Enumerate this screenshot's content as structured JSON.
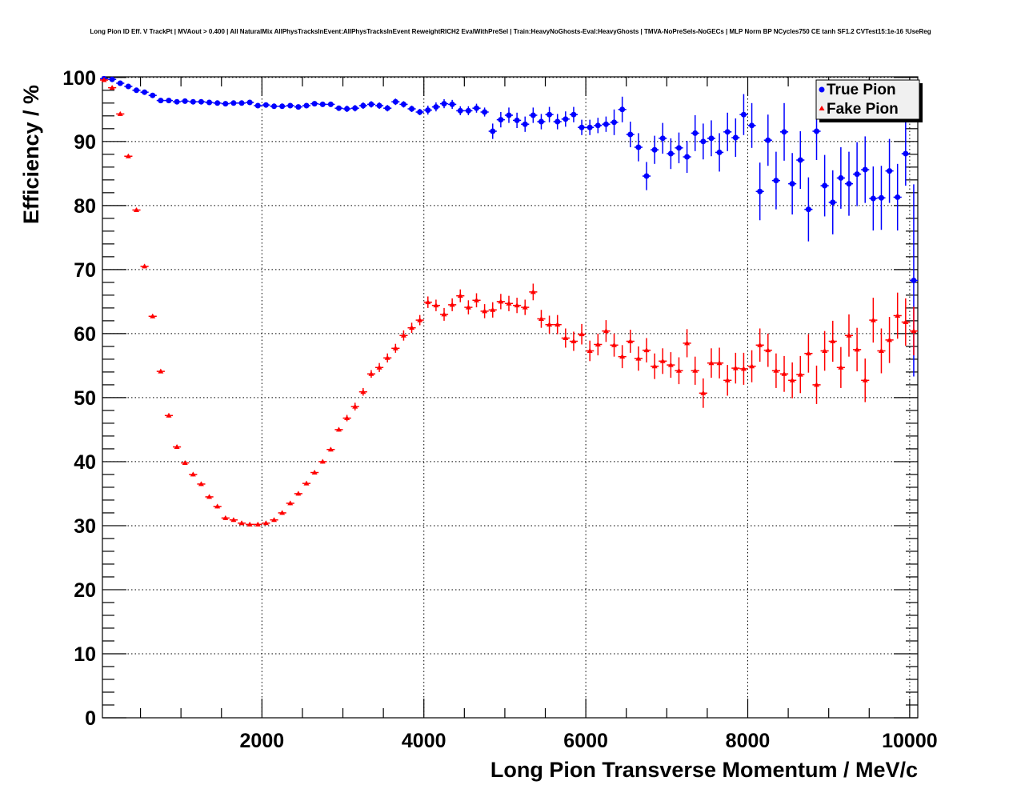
{
  "chart_data": {
    "type": "scatter",
    "title": "Long Pion ID Eff. V TrackPt | MVAout > 0.400 | All NaturalMix AllPhysTracksInEvent:AllPhysTracksInEvent ReweightRICH2 EvalWithPreSel | Train:HeavyNoGhosts-Eval:HeavyGhosts | TMVA-NoPreSels-NoGECs | MLP Norm BP NCycles750 CE tanh SF1.2 CVTest15:1e-16 !UseReg",
    "xlabel": "Long Pion Transverse Momentum / MeV/c",
    "ylabel": "Efficiency / %",
    "xlim": [
      30,
      10100
    ],
    "ylim": [
      0,
      100.1
    ],
    "xticks": [
      "2000",
      "4000",
      "6000",
      "8000",
      "10000"
    ],
    "xtick_values": [
      2000,
      4000,
      6000,
      8000,
      10000
    ],
    "yticks": [
      "0",
      "10",
      "20",
      "30",
      "40",
      "50",
      "60",
      "70",
      "80",
      "90",
      "100"
    ],
    "ytick_values": [
      0,
      10,
      20,
      30,
      40,
      50,
      60,
      70,
      80,
      90,
      100
    ],
    "grid": true,
    "legend_position": "top-right",
    "x_start": 50,
    "x_step": 100,
    "series": [
      {
        "name": "True Pion",
        "color": "#0000ff",
        "marker": "circle",
        "values": [
          99.8,
          99.7,
          99.1,
          98.6,
          98.0,
          97.7,
          97.2,
          96.4,
          96.4,
          96.2,
          96.3,
          96.2,
          96.2,
          96.1,
          96.0,
          95.9,
          96.0,
          96.0,
          96.1,
          95.6,
          95.7,
          95.5,
          95.5,
          95.6,
          95.4,
          95.6,
          95.9,
          95.8,
          95.8,
          95.2,
          95.1,
          95.2,
          95.6,
          95.8,
          95.6,
          95.2,
          96.2,
          95.8,
          95.1,
          94.6,
          94.9,
          95.4,
          95.9,
          95.8,
          94.8,
          94.8,
          95.2,
          94.6,
          91.6,
          93.4,
          94.1,
          93.3,
          92.7,
          94.1,
          93.1,
          94.2,
          93.1,
          93.5,
          94.2,
          92.2,
          92.2,
          92.5,
          92.7,
          93.0,
          95.0,
          91.1,
          89.1,
          84.6,
          88.7,
          90.5,
          88.1,
          89.0,
          87.6,
          91.3,
          90.0,
          90.5,
          88.3,
          91.5,
          90.6,
          94.2,
          92.5,
          82.2,
          90.2,
          83.9,
          91.5,
          83.4,
          87.1,
          79.4,
          91.6,
          83.1,
          80.5,
          84.3,
          83.4,
          84.9,
          85.6,
          81.1,
          81.2,
          85.4,
          81.3,
          88.1,
          68.3
        ],
        "errors": [
          0.2,
          0.2,
          0.2,
          0.2,
          0.2,
          0.2,
          0.2,
          0.2,
          0.2,
          0.2,
          0.3,
          0.3,
          0.3,
          0.3,
          0.3,
          0.3,
          0.3,
          0.3,
          0.3,
          0.3,
          0.3,
          0.3,
          0.3,
          0.3,
          0.3,
          0.3,
          0.3,
          0.3,
          0.3,
          0.3,
          0.5,
          0.5,
          0.5,
          0.5,
          0.5,
          0.5,
          0.5,
          0.5,
          0.5,
          0.5,
          0.7,
          0.7,
          0.7,
          0.7,
          0.7,
          0.7,
          0.7,
          0.7,
          1.2,
          1.2,
          1.2,
          1.2,
          1.2,
          1.2,
          1.2,
          1.2,
          1.2,
          1.2,
          1.2,
          1.2,
          1.2,
          1.2,
          1.2,
          2.0,
          2.0,
          2.0,
          2.2,
          2.2,
          2.2,
          2.4,
          2.4,
          2.4,
          2.5,
          2.8,
          2.8,
          2.8,
          3.0,
          3.0,
          3.0,
          3.2,
          3.5,
          4.5,
          4.0,
          4.5,
          4.5,
          4.8,
          4.5,
          5.0,
          4.5,
          4.8,
          5.0,
          4.8,
          5.0,
          5.0,
          5.2,
          5.0,
          5.0,
          5.0,
          5.2,
          5.0,
          15.0
        ]
      },
      {
        "name": "Fake Pion",
        "color": "#ff0000",
        "marker": "triangle",
        "values": [
          99.6,
          98.4,
          94.3,
          87.7,
          79.3,
          70.5,
          62.7,
          54.1,
          47.2,
          42.3,
          39.8,
          38.0,
          36.5,
          34.5,
          33.0,
          31.2,
          30.9,
          30.4,
          30.2,
          30.2,
          30.4,
          30.9,
          32.0,
          33.5,
          35.0,
          36.6,
          38.3,
          40.0,
          41.9,
          45.0,
          46.8,
          48.6,
          50.9,
          53.7,
          54.7,
          56.2,
          57.7,
          59.7,
          60.9,
          62.1,
          64.9,
          64.4,
          63.0,
          64.5,
          65.9,
          64.1,
          65.2,
          63.5,
          63.7,
          65.0,
          64.7,
          64.4,
          64.1,
          66.5,
          62.3,
          61.4,
          61.4,
          59.3,
          58.8,
          59.9,
          57.3,
          58.3,
          60.4,
          58.2,
          56.4,
          58.8,
          56.1,
          57.4,
          54.9,
          55.7,
          55.1,
          54.2,
          58.5,
          54.2,
          50.7,
          55.4,
          55.4,
          52.7,
          54.6,
          54.5,
          54.9,
          58.2,
          57.4,
          54.2,
          53.7,
          52.7,
          53.6,
          56.9,
          52.0,
          57.3,
          58.8,
          54.7,
          59.7,
          57.5,
          52.7,
          62.1,
          57.3,
          59.0,
          62.8,
          61.8,
          60.4
        ],
        "errors": [
          0.3,
          0.3,
          0.3,
          0.3,
          0.3,
          0.3,
          0.3,
          0.3,
          0.3,
          0.3,
          0.3,
          0.3,
          0.3,
          0.3,
          0.3,
          0.3,
          0.3,
          0.3,
          0.3,
          0.3,
          0.3,
          0.3,
          0.3,
          0.3,
          0.3,
          0.3,
          0.3,
          0.3,
          0.3,
          0.3,
          0.5,
          0.6,
          0.6,
          0.6,
          0.7,
          0.7,
          0.7,
          0.8,
          0.8,
          0.8,
          0.9,
          0.9,
          1.0,
          1.0,
          1.0,
          1.1,
          1.1,
          1.1,
          1.2,
          1.2,
          1.2,
          1.2,
          1.2,
          1.3,
          1.4,
          1.4,
          1.5,
          1.5,
          1.5,
          1.6,
          1.6,
          1.7,
          1.7,
          1.8,
          1.8,
          1.8,
          1.9,
          1.9,
          2.0,
          2.0,
          2.0,
          2.1,
          2.2,
          2.2,
          2.3,
          2.3,
          2.4,
          2.4,
          2.4,
          2.5,
          2.5,
          2.6,
          2.6,
          2.7,
          2.8,
          2.8,
          2.9,
          3.0,
          3.0,
          3.1,
          3.2,
          3.2,
          3.3,
          3.4,
          3.4,
          3.5,
          3.5,
          3.6,
          3.6,
          3.7,
          3.8
        ]
      }
    ]
  }
}
